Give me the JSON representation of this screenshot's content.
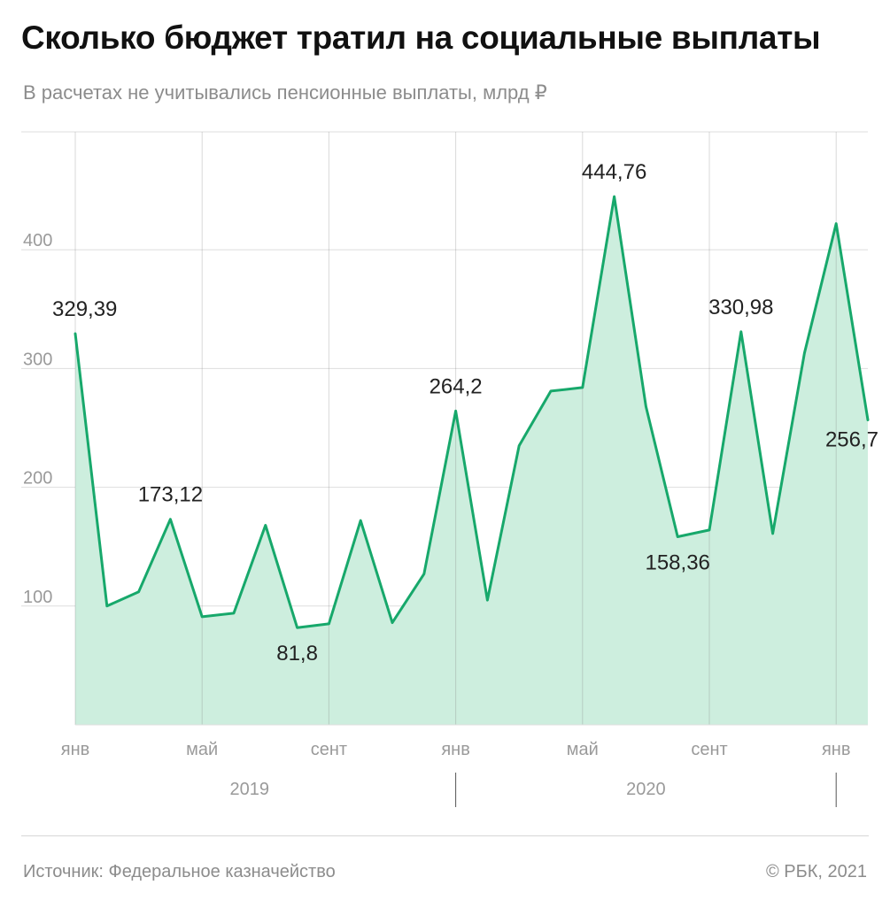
{
  "title": "Сколько бюджет тратил на социальные выплаты",
  "subtitle": "В расчетах не учитывались пенсионные выплаты, млрд ₽",
  "source": "Источник: Федеральное казначейство",
  "credit": "© РБК, 2021",
  "colors": {
    "line": "#17a86b",
    "area": "#cdeede",
    "grid": "#dedede",
    "axis_text": "#9a9a9a",
    "label_text": "#222222"
  },
  "chart_data": {
    "type": "area",
    "x": [
      "2019-01",
      "2019-02",
      "2019-03",
      "2019-04",
      "2019-05",
      "2019-06",
      "2019-07",
      "2019-08",
      "2019-09",
      "2019-10",
      "2019-11",
      "2019-12",
      "2020-01",
      "2020-02",
      "2020-03",
      "2020-04",
      "2020-05",
      "2020-06",
      "2020-07",
      "2020-08",
      "2020-09",
      "2020-10",
      "2020-11",
      "2020-12",
      "2021-01",
      "2021-02"
    ],
    "series": [
      {
        "values": [
          329.39,
          100,
          112,
          173.12,
          91,
          94,
          168,
          81.8,
          85,
          172,
          86,
          127,
          264.2,
          105,
          235,
          281,
          284,
          444.76,
          268,
          158.36,
          164,
          330.98,
          161,
          313,
          422,
          256.7
        ]
      }
    ],
    "ylim": [
      0,
      500
    ],
    "yticks": [
      100,
      200,
      300,
      400
    ],
    "ytick_labels": [
      "100",
      "200",
      "300",
      "400"
    ],
    "xticks": [
      {
        "x": "2019-01",
        "label": "янв"
      },
      {
        "x": "2019-05",
        "label": "май"
      },
      {
        "x": "2019-09",
        "label": "сент"
      },
      {
        "x": "2020-01",
        "label": "янв"
      },
      {
        "x": "2020-05",
        "label": "май"
      },
      {
        "x": "2020-09",
        "label": "сент"
      },
      {
        "x": "2021-01",
        "label": "янв"
      }
    ],
    "years": [
      {
        "label": "2019"
      },
      {
        "label": "2020"
      }
    ],
    "annotations": [
      {
        "x": "2019-01",
        "text": "329,39",
        "pos": "above"
      },
      {
        "x": "2019-04",
        "text": "173,12",
        "pos": "above"
      },
      {
        "x": "2019-08",
        "text": "81,8",
        "pos": "below"
      },
      {
        "x": "2020-01",
        "text": "264,2",
        "pos": "above"
      },
      {
        "x": "2020-06",
        "text": "444,76",
        "pos": "above"
      },
      {
        "x": "2020-08",
        "text": "158,36",
        "pos": "below"
      },
      {
        "x": "2020-10",
        "text": "330,98",
        "pos": "above"
      },
      {
        "x": "2021-02",
        "text": "256,7",
        "pos": "end"
      }
    ],
    "grid": true
  }
}
